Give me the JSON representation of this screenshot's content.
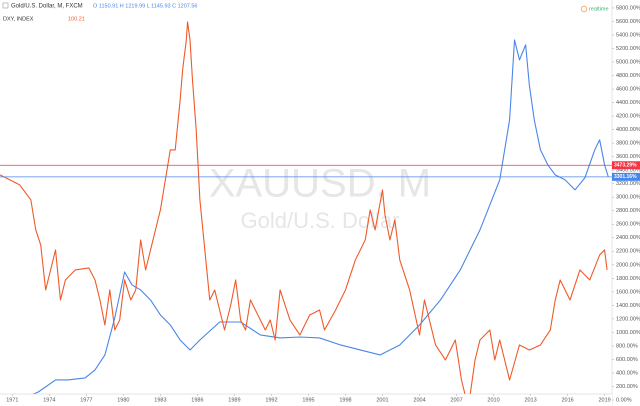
{
  "chart_data": {
    "type": "line",
    "symbol": "Gold/U.S. Dollar, M, FXCM",
    "ohlc": "O 1150.91 H 1219.99 L 1145.93 C 1207.56",
    "compare_symbol": "DXY, INDEX",
    "compare_value": "100.21",
    "status": "realtime",
    "watermark": "XAUUSD, M",
    "watermark_subtitle": "Gold/U.S. Dollar",
    "xlim": [
      1970,
      2019.6
    ],
    "ylim": [
      -89,
      5918
    ],
    "xticks": [
      1971,
      1974,
      1977,
      1980,
      1983,
      1986,
      1989,
      1992,
      1995,
      1998,
      2001,
      2004,
      2007,
      2010,
      2013,
      2016,
      2019
    ],
    "yticks": [
      {
        "value": 0,
        "label": "0.00%"
      },
      {
        "value": 200,
        "label": "200.00%"
      },
      {
        "value": 400,
        "label": "400.00%"
      },
      {
        "value": 600,
        "label": "600.00%"
      },
      {
        "value": 800,
        "label": "800.00%"
      },
      {
        "value": 1000,
        "label": "1000.00%"
      },
      {
        "value": 1200,
        "label": "1200.00%"
      },
      {
        "value": 1400,
        "label": "1400.00%"
      },
      {
        "value": 1600,
        "label": "1600.00%"
      },
      {
        "value": 1800,
        "label": "1800.00%"
      },
      {
        "value": 2000,
        "label": "2000.00%"
      },
      {
        "value": 2200,
        "label": "2200.00%"
      },
      {
        "value": 2400,
        "label": "2400.00%"
      },
      {
        "value": 2600,
        "label": "2600.00%"
      },
      {
        "value": 2800,
        "label": "2800.00%"
      },
      {
        "value": 3000,
        "label": "3000.00%"
      },
      {
        "value": 3200,
        "label": "3200.00%"
      },
      {
        "value": 3400,
        "label": "3400.00%"
      },
      {
        "value": 3600,
        "label": "3600.00%"
      },
      {
        "value": 3800,
        "label": "3800.00%"
      },
      {
        "value": 4000,
        "label": "4000.00%"
      },
      {
        "value": 4200,
        "label": "4200.00%"
      },
      {
        "value": 4400,
        "label": "4400.00%"
      },
      {
        "value": 4600,
        "label": "4600.00%"
      },
      {
        "value": 4800,
        "label": "4800.00%"
      },
      {
        "value": 5000,
        "label": "5000.00%"
      },
      {
        "value": 5200,
        "label": "5200.00%"
      },
      {
        "value": 5400,
        "label": "5400.00%"
      },
      {
        "value": 5600,
        "label": "5600.00%"
      },
      {
        "value": 5800,
        "label": "5800.00%"
      }
    ],
    "price_lines": [
      {
        "value": 3473.29,
        "label": "3473.29%",
        "color": "#f23645"
      },
      {
        "value": 3301.16,
        "label": "3301.16%",
        "color": "#4a86e8"
      }
    ],
    "series": [
      {
        "name": "Gold/U.S. Dollar, M, FXCM",
        "color": "#4a86e8",
        "x": [
          1970.0,
          1971.6,
          1973.1,
          1974.5,
          1975.5,
          1976.9,
          1977.7,
          1978.5,
          1979.3,
          1980.1,
          1980.7,
          1981.4,
          1982.2,
          1983.0,
          1983.8,
          1984.6,
          1985.4,
          1986.2,
          1987.8,
          1989.5,
          1991.1,
          1992.7,
          1994.3,
          1995.9,
          1997.6,
          1999.2,
          2000.8,
          2002.4,
          2004.0,
          2005.7,
          2007.3,
          2008.9,
          2010.5,
          2011.3,
          2011.7,
          2012.1,
          2012.6,
          2012.9,
          2013.3,
          2013.8,
          2014.4,
          2015.0,
          2015.8,
          2016.6,
          2017.4,
          2018.2,
          2018.6,
          2019.0,
          2019.3
        ],
        "values": [
          0,
          0,
          118,
          296,
          296,
          326,
          444,
          666,
          1214,
          1894,
          1702,
          1628,
          1480,
          1258,
          1110,
          888,
          740,
          888,
          1154,
          1154,
          962,
          918,
          932,
          918,
          814,
          740,
          666,
          814,
          1110,
          1480,
          1924,
          2516,
          3256,
          4144,
          5328,
          5032,
          5254,
          4662,
          4144,
          3700,
          3478,
          3330,
          3256,
          3108,
          3286,
          3700,
          3848,
          3478,
          3301.16
        ]
      },
      {
        "name": "DXY, INDEX",
        "color": "#f05a28",
        "x": [
          1970.0,
          1970.8,
          1971.6,
          1972.5,
          1972.9,
          1973.3,
          1973.7,
          1974.1,
          1974.5,
          1974.9,
          1975.3,
          1976.1,
          1977.2,
          1977.7,
          1978.1,
          1978.5,
          1978.9,
          1979.3,
          1979.7,
          1980.1,
          1980.6,
          1981.0,
          1981.4,
          1981.8,
          1982.2,
          1982.6,
          1983.0,
          1983.4,
          1983.8,
          1984.2,
          1984.6,
          1984.8,
          1985.1,
          1985.2,
          1985.4,
          1985.6,
          1985.9,
          1986.2,
          1986.6,
          1987.0,
          1987.4,
          1987.8,
          1988.2,
          1988.7,
          1989.1,
          1989.5,
          1989.9,
          1990.3,
          1991.1,
          1991.5,
          1991.9,
          1992.3,
          1992.7,
          1993.5,
          1994.3,
          1995.1,
          1995.9,
          1996.3,
          1997.2,
          1998.0,
          1998.8,
          1999.6,
          2000.0,
          2000.4,
          2001.0,
          2001.2,
          2001.6,
          2002.0,
          2002.4,
          2003.2,
          2004.0,
          2004.4,
          2005.3,
          2006.1,
          2006.9,
          2007.4,
          2007.8,
          2008.1,
          2008.5,
          2008.9,
          2009.7,
          2010.1,
          2010.5,
          2011.3,
          2012.1,
          2012.9,
          2013.8,
          2014.6,
          2015.0,
          2015.4,
          2016.2,
          2017.0,
          2017.8,
          2018.6,
          2019.0,
          2019.2
        ],
        "values": [
          3330,
          3256,
          3182,
          2960,
          2516,
          2294,
          1628,
          1924,
          2220,
          1480,
          1776,
          1924,
          1954,
          1776,
          1480,
          1110,
          1628,
          1036,
          1184,
          1776,
          1480,
          1628,
          2368,
          1924,
          2220,
          2516,
          2812,
          3256,
          3700,
          3700,
          4440,
          4884,
          5328,
          5594,
          5328,
          4736,
          3996,
          2960,
          2220,
          1480,
          1628,
          1332,
          1036,
          1406,
          1776,
          1184,
          1036,
          1480,
          1184,
          1036,
          1184,
          888,
          1628,
          1184,
          962,
          1258,
          1332,
          1036,
          1332,
          1628,
          2072,
          2368,
          2812,
          2516,
          3108,
          2738,
          2368,
          2664,
          2072,
          1628,
          962,
          1480,
          814,
          592,
          888,
          296,
          0,
          74,
          592,
          888,
          1036,
          592,
          888,
          296,
          814,
          740,
          814,
          1036,
          1480,
          1776,
          1480,
          1924,
          1776,
          2146,
          2220,
          1924
        ]
      }
    ]
  }
}
